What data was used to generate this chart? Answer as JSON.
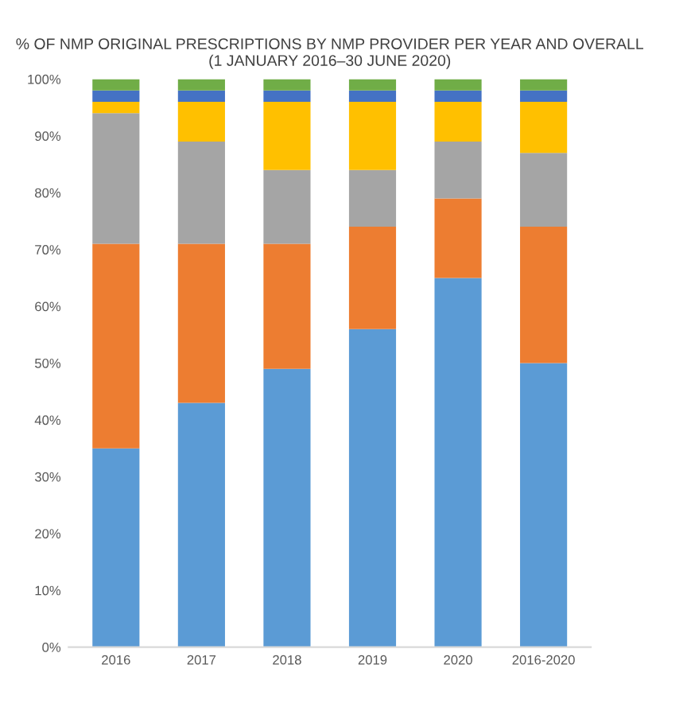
{
  "chart_data": {
    "type": "bar",
    "stacked": true,
    "title": "% OF NMP ORIGINAL PRESCRIPTIONS BY NMP PROVIDER PER YEAR AND OVERALL\n(1 JANUARY 2016–30 JUNE 2020)",
    "categories": [
      "2016",
      "2017",
      "2018",
      "2019",
      "2020",
      "2016-2020"
    ],
    "series": [
      {
        "color": "#5b9bd5",
        "values": [
          35,
          43,
          49,
          56,
          65,
          50
        ]
      },
      {
        "color": "#ed7d31",
        "values": [
          36,
          28,
          22,
          18,
          14,
          24
        ]
      },
      {
        "color": "#a5a5a5",
        "values": [
          23,
          18,
          13,
          10,
          10,
          13
        ]
      },
      {
        "color": "#ffc000",
        "values": [
          2,
          7,
          12,
          12,
          7,
          9
        ]
      },
      {
        "color": "#4472c4",
        "values": [
          2,
          2,
          2,
          2,
          2,
          2
        ]
      },
      {
        "color": "#70ad47",
        "values": [
          2,
          2,
          2,
          2,
          2,
          2
        ]
      }
    ],
    "ylim": [
      0,
      100
    ],
    "yticks": [
      {
        "value": 0,
        "label": "0%"
      },
      {
        "value": 10,
        "label": "10%"
      },
      {
        "value": 20,
        "label": "20%"
      },
      {
        "value": 30,
        "label": "30%"
      },
      {
        "value": 40,
        "label": "40%"
      },
      {
        "value": 50,
        "label": "50%"
      },
      {
        "value": 60,
        "label": "60%"
      },
      {
        "value": 70,
        "label": "70%"
      },
      {
        "value": 80,
        "label": "80%"
      },
      {
        "value": 90,
        "label": "90%"
      },
      {
        "value": 100,
        "label": "100%"
      }
    ],
    "grid": false
  }
}
